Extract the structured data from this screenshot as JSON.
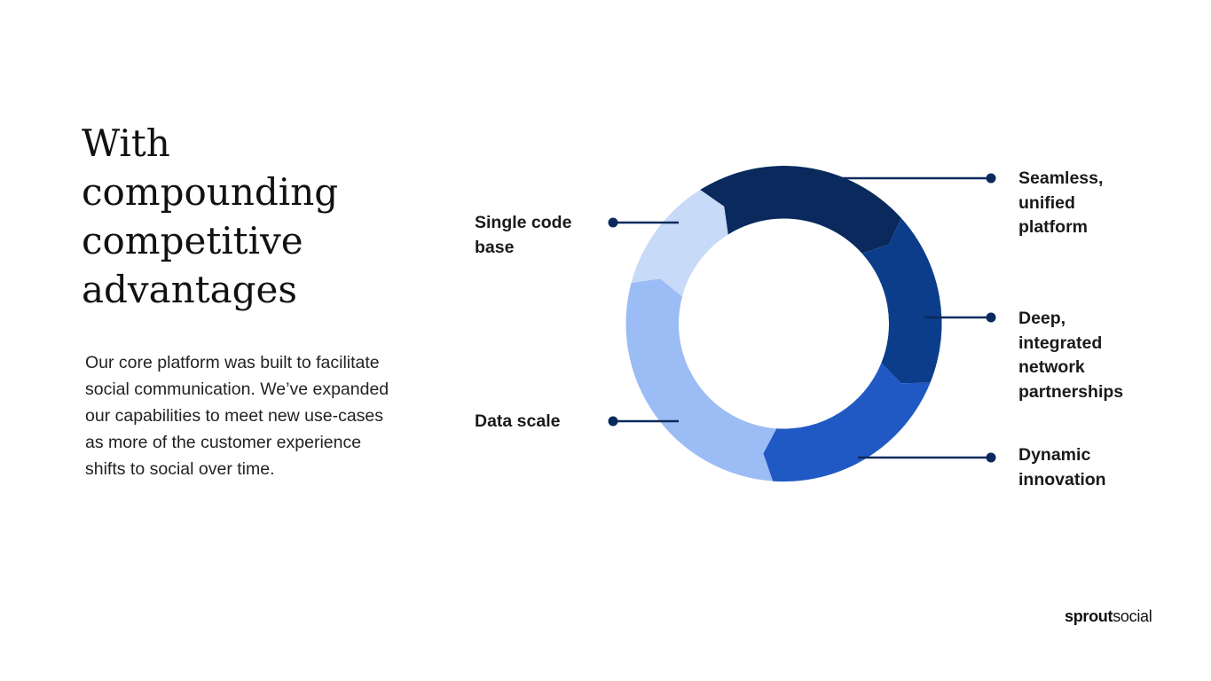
{
  "headline": [
    "With",
    "compounding",
    "competitive",
    "advantages"
  ],
  "body": "Our core platform was built to facilitate social communication. We’ve expanded our capabilities to meet new use-cases as more of the customer experience shifts to social over time.",
  "diagram": {
    "segments": [
      {
        "label": "Seamless, unified platform",
        "color": "#0a2a5e"
      },
      {
        "label": "Deep, integrated network partnerships",
        "color": "#0c3d8a"
      },
      {
        "label": "Dynamic innovation",
        "color": "#2159c4"
      },
      {
        "label": "Data scale",
        "color": "#9cbcf5"
      },
      {
        "label": "Single code base",
        "color": "#c7daf7"
      }
    ],
    "connector_color": "#0b2a5c"
  },
  "logo": {
    "bold": "sprout",
    "regular": "social"
  }
}
